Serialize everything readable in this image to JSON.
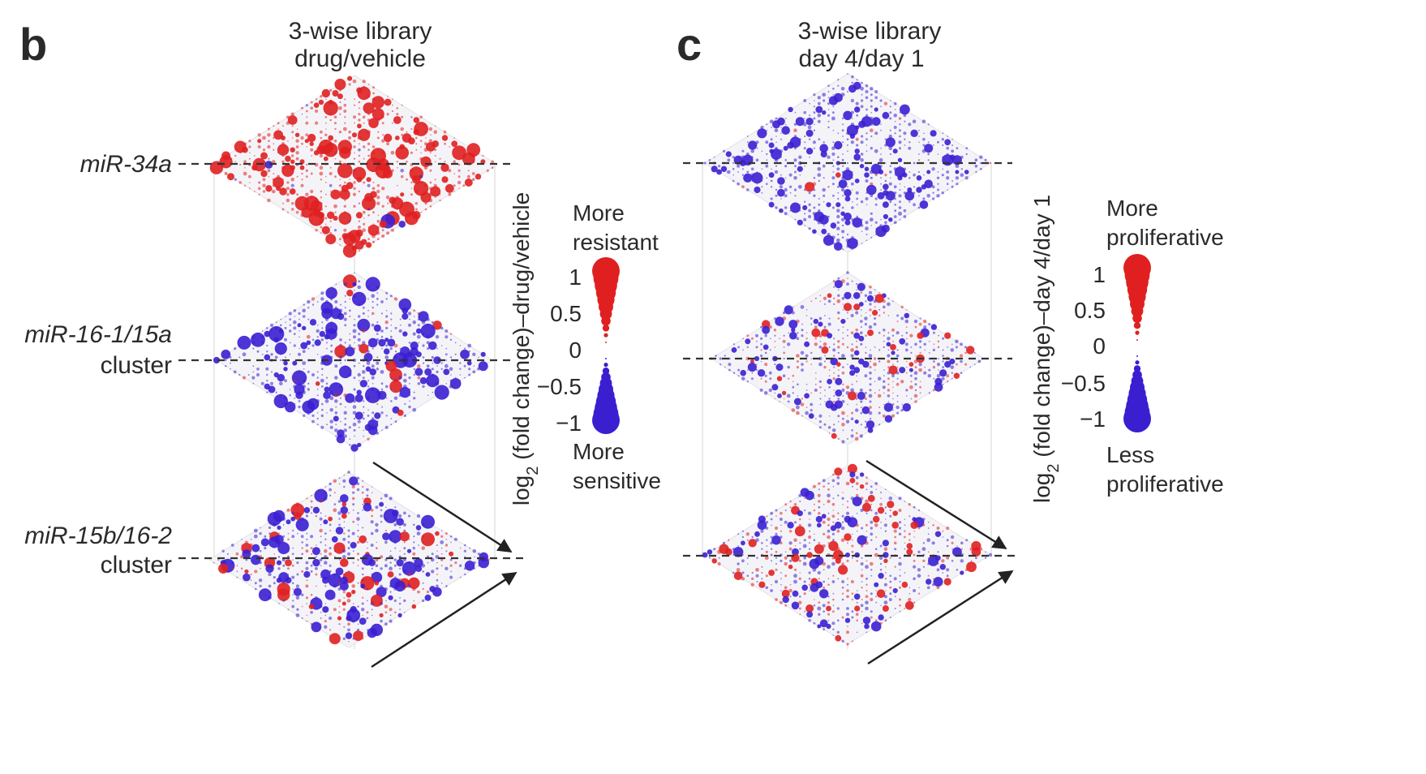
{
  "colors": {
    "positive": "#e02020",
    "negative": "#3a1fd1",
    "dashed_line": "#333333",
    "arrow": "#222222"
  },
  "panels": [
    {
      "letter": "b",
      "title_line1": "3-wise library",
      "title_line2": "drug/vehicle",
      "rows": [
        {
          "label_line1": "miR-34a",
          "label_line2": "",
          "pos_fraction": 0.96
        },
        {
          "label_line1": "miR-16-1/15a",
          "label_line2": "cluster",
          "pos_fraction": 0.05
        },
        {
          "label_line1": "miR-15b/16-2",
          "label_line2": "cluster",
          "pos_fraction": 0.28
        }
      ],
      "axis_label_prefix": "log",
      "axis_label_sub": "2",
      "axis_label_rest": " (fold change)–drug/vehicle",
      "legend_top_line1": "More",
      "legend_top_line2": "resistant",
      "legend_bottom_line1": "More",
      "legend_bottom_line2": "sensitive",
      "scale_ticks": [
        "1",
        "0.5",
        "0",
        "−0.5",
        "−1"
      ]
    },
    {
      "letter": "c",
      "title_line1": "3-wise library",
      "title_line2": "day 4/day 1",
      "rows": [
        {
          "label_line1": "",
          "label_line2": "",
          "pos_fraction": 0.03
        },
        {
          "label_line1": "",
          "label_line2": "",
          "pos_fraction": 0.3
        },
        {
          "label_line1": "",
          "label_line2": "",
          "pos_fraction": 0.4
        }
      ],
      "axis_label_prefix": "log",
      "axis_label_sub": "2",
      "axis_label_rest": " (fold change)–day 4/day 1",
      "legend_top_line1": "More",
      "legend_top_line2": "proliferative",
      "legend_bottom_line1": "Less",
      "legend_bottom_line2": "proliferative",
      "scale_ticks": [
        "1",
        "0.5",
        "0",
        "−0.5",
        "−1"
      ]
    }
  ]
}
